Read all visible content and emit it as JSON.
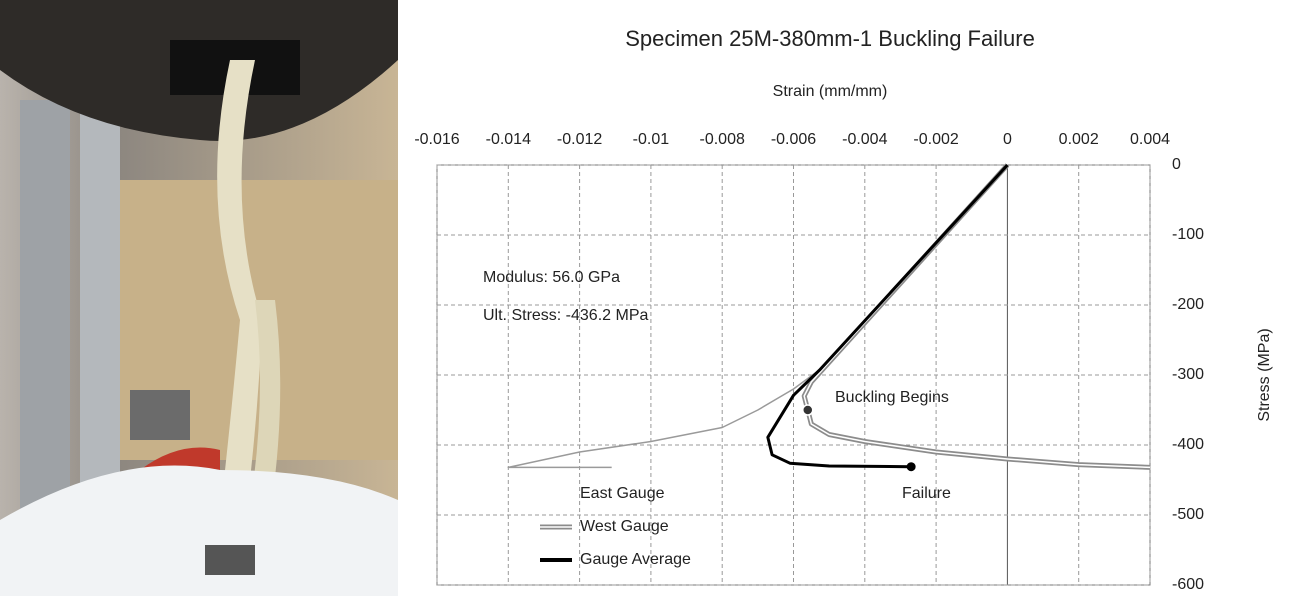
{
  "chart_data": {
    "type": "line",
    "title": "Specimen 25M-380mm-1 Buckling Failure",
    "x_label": "Strain (mm/mm)",
    "y_label": "Stress (MPa)",
    "xlim": [
      -0.016,
      0.004
    ],
    "xticks": [
      -0.016,
      -0.014,
      -0.012,
      -0.01,
      -0.008,
      -0.006,
      -0.004,
      -0.002,
      0,
      0.002,
      0.004
    ],
    "ylim": [
      0,
      -600
    ],
    "yticks": [
      0,
      -100,
      -200,
      -300,
      -400,
      -500,
      -600
    ],
    "grid": true,
    "legend": "lower left",
    "series": [
      {
        "name": "East Gauge",
        "color": "#9a9a9a",
        "x": [
          0,
          -0.0052,
          -0.006,
          -0.007,
          -0.008,
          -0.01,
          -0.012,
          -0.014,
          -0.0111
        ],
        "values": [
          0,
          -290,
          -320,
          -350,
          -375,
          -395,
          -410,
          -432,
          -432
        ]
      },
      {
        "name": "West Gauge",
        "color": "#8c8c8c",
        "x": [
          0,
          -0.0055,
          -0.0057,
          -0.0056,
          -0.0055,
          -0.005,
          -0.004,
          -0.002,
          0,
          0.002,
          0.004
        ],
        "values": [
          0,
          -310,
          -330,
          -350,
          -370,
          -385,
          -395,
          -410,
          -420,
          -428,
          -432
        ]
      },
      {
        "name": "Gauge Average",
        "color": "#000000",
        "x": [
          0,
          -0.00527,
          -0.006,
          -0.00672,
          -0.0066,
          -0.0061,
          -0.005,
          -0.0027
        ],
        "values": [
          0,
          -293,
          -329,
          -389,
          -414,
          -426,
          -430,
          -431
        ]
      }
    ],
    "annotations": [
      "Modulus: 56.0 GPa",
      "Ult. Stress: -436.2 MPa",
      "Buckling Begins",
      "Failure"
    ]
  }
}
